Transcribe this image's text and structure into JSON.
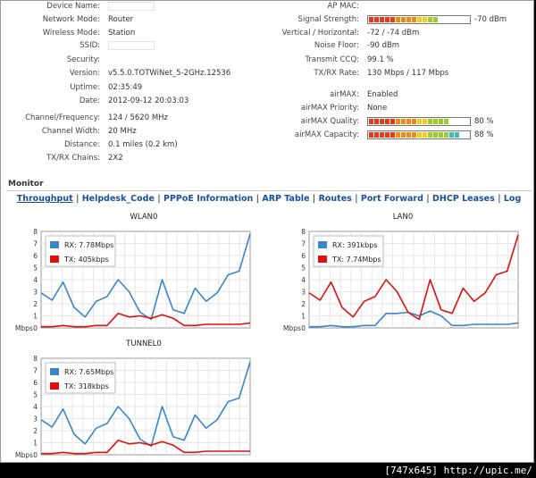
{
  "left_fields": [
    {
      "key": "device_name",
      "label": "Device Name:",
      "value": "",
      "redacted": true
    },
    {
      "key": "network_mode",
      "label": "Network Mode:",
      "value": "Router"
    },
    {
      "key": "wireless_mode",
      "label": "Wireless Mode:",
      "value": "Station"
    },
    {
      "key": "ssid",
      "label": "SSID:",
      "value": "",
      "redacted": true
    },
    {
      "key": "security",
      "label": "Security:",
      "value": ""
    },
    {
      "key": "version",
      "label": "Version:",
      "value": "v5.5.0.TOTWiNet_5-2GHz.12536"
    },
    {
      "key": "uptime",
      "label": "Uptime:",
      "value": "02:35:49"
    },
    {
      "key": "date",
      "label": "Date:",
      "value": "2012-09-12 20:03:03"
    },
    {
      "key": "channel_frequency",
      "label": "Channel/Frequency:",
      "value": "124 / 5620 MHz"
    },
    {
      "key": "channel_width",
      "label": "Channel Width:",
      "value": "20 MHz"
    },
    {
      "key": "distance",
      "label": "Distance:",
      "value": "0.1 miles (0.2 km)"
    },
    {
      "key": "txrx_chains",
      "label": "TX/RX Chains:",
      "value": "2X2"
    }
  ],
  "right_fields": [
    {
      "key": "ap_mac",
      "label": "AP MAC:",
      "value": ""
    },
    {
      "key": "signal_strength",
      "label": "Signal Strength:",
      "value": "-70 dBm",
      "level": 0.68
    },
    {
      "key": "vertical_horizontal",
      "label": "Vertical / Horizontal:",
      "value": "-72 / -74 dBm"
    },
    {
      "key": "noise_floor",
      "label": "Noise Floor:",
      "value": "-90 dBm"
    },
    {
      "key": "transmit_ccq",
      "label": "Transmit CCQ:",
      "value": "99.1 %"
    },
    {
      "key": "txrx_rate",
      "label": "TX/RX Rate:",
      "value": "130 Mbps / 117 Mbps"
    },
    {
      "key": "airmax",
      "label": "airMAX:",
      "value": "Enabled"
    },
    {
      "key": "airmax_priority",
      "label": "airMAX Priority:",
      "value": "None"
    },
    {
      "key": "airmax_quality",
      "label": "airMAX Quality:",
      "value": "80 %",
      "level": 0.8
    },
    {
      "key": "airmax_capacity",
      "label": "airMAX Capacity:",
      "value": "88 %",
      "level": 0.88
    }
  ],
  "monitor": {
    "title": "Monitor",
    "tabs": [
      {
        "label": "Throughput",
        "active": true
      },
      {
        "label": "Helpdesk_Code"
      },
      {
        "label": "PPPoE Information"
      },
      {
        "label": "ARP Table"
      },
      {
        "label": "Routes"
      },
      {
        "label": "Port Forward"
      },
      {
        "label": "DHCP Leases"
      },
      {
        "label": "Log"
      }
    ]
  },
  "colors": {
    "rx": "#3a86c8",
    "tx": "#e01010"
  },
  "chart_data": [
    {
      "type": "line",
      "title": "WLAN0",
      "ylabel": "Mbps",
      "ylim": [
        0,
        8
      ],
      "yticks": [
        "0",
        "1",
        "2",
        "3",
        "4",
        "5",
        "6",
        "7",
        "8"
      ],
      "series": [
        {
          "name": "RX: 7.78Mbps",
          "values": [
            2.9,
            2.3,
            3.8,
            1.7,
            0.9,
            2.2,
            2.6,
            4.0,
            3.0,
            1.3,
            0.7,
            4.0,
            1.5,
            1.2,
            3.3,
            2.2,
            2.9,
            4.4,
            4.7,
            7.8
          ]
        },
        {
          "name": "TX: 405kbps",
          "values": [
            0.1,
            0.1,
            0.2,
            0.1,
            0.1,
            0.2,
            0.2,
            1.2,
            0.9,
            1.0,
            0.8,
            1.1,
            0.8,
            0.2,
            0.2,
            0.3,
            0.3,
            0.3,
            0.3,
            0.4
          ]
        }
      ]
    },
    {
      "type": "line",
      "title": "LAN0",
      "ylabel": "Mbps",
      "ylim": [
        0,
        8
      ],
      "yticks": [
        "0",
        "1",
        "2",
        "3",
        "4",
        "5",
        "6",
        "7",
        "8"
      ],
      "series": [
        {
          "name": "RX: 391kbps",
          "values": [
            0.1,
            0.1,
            0.2,
            0.1,
            0.1,
            0.2,
            0.2,
            1.2,
            1.2,
            1.3,
            1.0,
            1.4,
            1.0,
            0.2,
            0.2,
            0.3,
            0.3,
            0.3,
            0.3,
            0.4
          ]
        },
        {
          "name": "TX: 7.74Mbps",
          "values": [
            2.9,
            2.3,
            3.8,
            1.7,
            0.9,
            2.2,
            2.6,
            4.0,
            3.0,
            1.3,
            0.7,
            4.0,
            1.5,
            1.2,
            3.3,
            2.2,
            2.9,
            4.4,
            4.7,
            7.7
          ]
        }
      ]
    },
    {
      "type": "line",
      "title": "TUNNEL0",
      "ylabel": "Mbps",
      "ylim": [
        0,
        8
      ],
      "yticks": [
        "0",
        "1",
        "2",
        "3",
        "4",
        "5",
        "6",
        "7",
        "8"
      ],
      "series": [
        {
          "name": "RX: 7.65Mbps",
          "values": [
            2.9,
            2.3,
            3.8,
            1.7,
            0.9,
            2.2,
            2.6,
            4.0,
            3.0,
            1.3,
            0.7,
            4.0,
            1.5,
            1.2,
            3.3,
            2.2,
            2.9,
            4.4,
            4.7,
            7.7
          ]
        },
        {
          "name": "TX: 318kbps",
          "values": [
            0.1,
            0.1,
            0.2,
            0.1,
            0.1,
            0.2,
            0.2,
            1.2,
            0.9,
            1.0,
            0.8,
            1.1,
            0.8,
            0.2,
            0.2,
            0.3,
            0.3,
            0.3,
            0.3,
            0.3
          ]
        }
      ]
    }
  ],
  "watermark": "[747x645] http://upic.me/"
}
